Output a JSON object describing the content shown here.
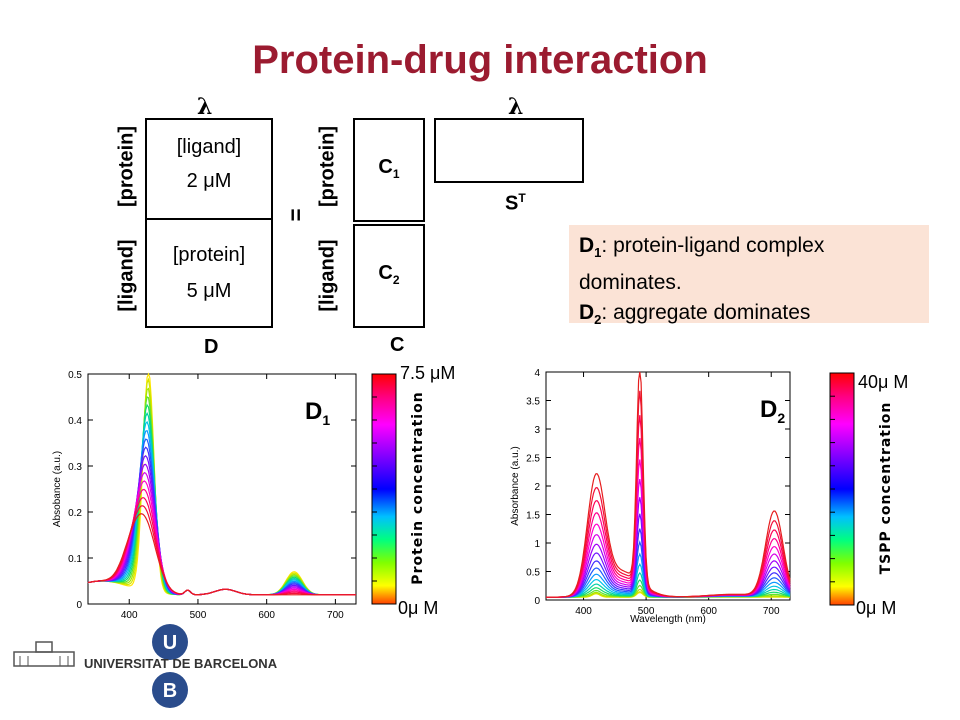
{
  "title": "Protein-drug interaction",
  "diagram": {
    "lambda": "λ",
    "equals": "=",
    "D": {
      "top_label": "[protein]",
      "bottom_label": "[ligand]",
      "top_cell": [
        "[ligand]",
        "2 μM"
      ],
      "bottom_cell": [
        "[protein]",
        "5 μM"
      ],
      "caption": "D"
    },
    "C": {
      "top_label": "[protein]",
      "bottom_label": "[ligand]",
      "top_cell": "C1",
      "bottom_cell": "C2",
      "caption": "C"
    },
    "ST": "ST"
  },
  "note": {
    "line1_name": "D1",
    "line1_text": ": protein-ligand complex dominates.",
    "line2_name": "D2",
    "line2_text": ": aggregate dominates"
  },
  "colors": {
    "title": "#9b1b30",
    "note_bg": "#fbe3d6"
  },
  "chart_data": [
    {
      "type": "line",
      "label": "D1",
      "ylabel": "Absobance (a.u.)",
      "xticks": [
        400,
        500,
        600,
        700
      ],
      "yticks": [
        0,
        0.1,
        0.2,
        0.3,
        0.4,
        0.5
      ],
      "xlim": [
        340,
        730
      ],
      "ylim": [
        0,
        0.5
      ],
      "colorbar": {
        "title": "Protein concentration",
        "max": "7.5 μM",
        "min": "0μ M"
      },
      "peaks": [
        {
          "x": 428,
          "y_max": 0.48,
          "y_min": 0.15
        },
        {
          "x": 485,
          "y": 0.02
        },
        {
          "x": 640,
          "y_max": 0.05
        }
      ]
    },
    {
      "type": "line",
      "label": "D2",
      "ylabel": "Absorbance (a.u.)",
      "xlabel": "Wavelength (nm)",
      "xticks": [
        400,
        500,
        600,
        700
      ],
      "yticks": [
        0,
        0.5,
        1,
        1.5,
        2,
        2.5,
        3,
        3.5,
        4
      ],
      "xlim": [
        340,
        730
      ],
      "ylim": [
        0,
        4
      ],
      "colorbar": {
        "title": "TSPP concentration",
        "max": "40μ M",
        "min": "0μ M"
      },
      "peaks": [
        {
          "x": 420,
          "y_max": 2.3
        },
        {
          "x": 490,
          "y_max": 3.95
        },
        {
          "x": 705,
          "y_max": 1.6
        }
      ]
    }
  ],
  "logo": {
    "name": "UNIVERSITAT DE BARCELONA",
    "letters": [
      "U",
      "B"
    ]
  }
}
